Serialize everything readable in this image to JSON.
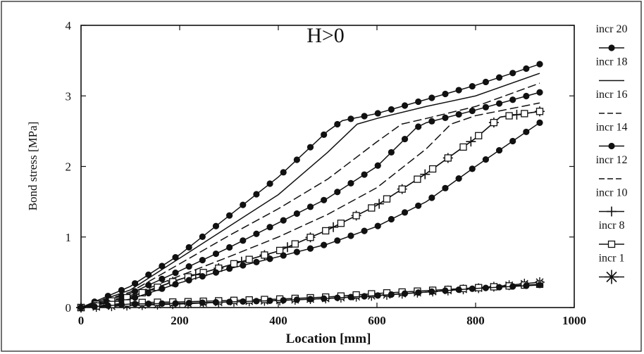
{
  "chart_data": {
    "type": "line",
    "annotation": "H>0",
    "xlabel": "Location [mm]",
    "ylabel": "Bond stress [MPa]",
    "xlim": [
      0,
      1000
    ],
    "ylim": [
      0,
      4
    ],
    "x_ticks": [
      "0",
      "200",
      "400",
      "600",
      "800",
      "1000"
    ],
    "y_ticks": [
      "0",
      "1",
      "2",
      "3",
      "4"
    ],
    "grid": false,
    "legend_position": "right",
    "series": [
      {
        "name": "incr 20",
        "marker": "dot",
        "line": "solid",
        "x": [
          0,
          100,
          200,
          300,
          400,
          500,
          530,
          600,
          700,
          800,
          930
        ],
        "y": [
          0,
          0.3,
          0.75,
          1.3,
          1.85,
          2.5,
          2.65,
          2.75,
          2.95,
          3.15,
          3.45
        ]
      },
      {
        "name": "incr 18",
        "marker": "none",
        "line": "solid",
        "x": [
          0,
          100,
          200,
          300,
          400,
          500,
          560,
          600,
          700,
          800,
          930
        ],
        "y": [
          0,
          0.25,
          0.7,
          1.15,
          1.6,
          2.2,
          2.6,
          2.68,
          2.85,
          3.0,
          3.32
        ]
      },
      {
        "name": "incr 16",
        "marker": "none",
        "line": "dashed",
        "x": [
          0,
          100,
          200,
          300,
          400,
          500,
          600,
          650,
          700,
          800,
          930
        ],
        "y": [
          0,
          0.22,
          0.62,
          1.02,
          1.4,
          1.82,
          2.35,
          2.6,
          2.68,
          2.85,
          3.18
        ]
      },
      {
        "name": "incr 14",
        "marker": "dot",
        "line": "solid",
        "x": [
          0,
          100,
          200,
          300,
          400,
          500,
          600,
          680,
          700,
          800,
          930
        ],
        "y": [
          0,
          0.2,
          0.52,
          0.85,
          1.2,
          1.55,
          2.0,
          2.55,
          2.62,
          2.8,
          3.05
        ]
      },
      {
        "name": "incr 12",
        "marker": "none",
        "line": "dashed",
        "x": [
          0,
          100,
          200,
          300,
          400,
          500,
          600,
          700,
          750,
          800,
          930
        ],
        "y": [
          0,
          0.17,
          0.45,
          0.72,
          1.0,
          1.32,
          1.7,
          2.25,
          2.6,
          2.72,
          2.9
        ]
      },
      {
        "name": "incr 10",
        "marker": "plus",
        "line": "solid",
        "x": [
          0,
          100,
          200,
          300,
          400,
          500,
          600,
          700,
          800,
          850,
          930
        ],
        "y": [
          0,
          0.15,
          0.4,
          0.6,
          0.8,
          1.1,
          1.45,
          1.9,
          2.4,
          2.7,
          2.78
        ]
      },
      {
        "name": "incr 8",
        "marker": "open-square",
        "line": "solid",
        "x": [
          0,
          100,
          200,
          300,
          400,
          500,
          600,
          700,
          800,
          850,
          930
        ],
        "y": [
          0,
          0.15,
          0.4,
          0.6,
          0.8,
          1.1,
          1.45,
          1.9,
          2.4,
          2.7,
          2.78
        ]
      },
      {
        "name": "",
        "marker": "dot",
        "line": "solid",
        "x": [
          0,
          100,
          200,
          300,
          400,
          500,
          600,
          700,
          800,
          930
        ],
        "y": [
          0,
          0.12,
          0.35,
          0.55,
          0.72,
          0.9,
          1.15,
          1.5,
          2.0,
          2.62
        ]
      },
      {
        "name": "incr 1",
        "marker": "star",
        "line": "solid",
        "x": [
          0,
          100,
          200,
          300,
          400,
          500,
          600,
          700,
          800,
          930
        ],
        "y": [
          0,
          0.03,
          0.05,
          0.08,
          0.1,
          0.13,
          0.17,
          0.22,
          0.27,
          0.36
        ]
      },
      {
        "name": "",
        "marker": "open-square",
        "line": "solid",
        "x": [
          0,
          100,
          200,
          300,
          400,
          500,
          600,
          700,
          800,
          930
        ],
        "y": [
          0,
          0.07,
          0.08,
          0.1,
          0.12,
          0.15,
          0.2,
          0.24,
          0.28,
          0.33
        ]
      },
      {
        "name": "",
        "marker": "dot",
        "line": "solid",
        "x": [
          0,
          100,
          200,
          300,
          400,
          500,
          600,
          700,
          800,
          930
        ],
        "y": [
          0,
          0.05,
          0.06,
          0.08,
          0.1,
          0.13,
          0.17,
          0.22,
          0.27,
          0.32
        ]
      }
    ],
    "legend": [
      {
        "label": "incr 20",
        "marker": "dot",
        "line": "solid"
      },
      {
        "label": "incr 18",
        "marker": "none",
        "line": "solid"
      },
      {
        "label": "incr 16",
        "marker": "none",
        "line": "dashed"
      },
      {
        "label": "incr 14",
        "marker": "dot",
        "line": "solid"
      },
      {
        "label": "incr 12",
        "marker": "none",
        "line": "dashed"
      },
      {
        "label": "incr 10",
        "marker": "plus",
        "line": "solid"
      },
      {
        "label": "incr 8",
        "marker": "open-square",
        "line": "solid"
      },
      {
        "label": "incr 1",
        "marker": "star",
        "line": "solid"
      }
    ]
  }
}
